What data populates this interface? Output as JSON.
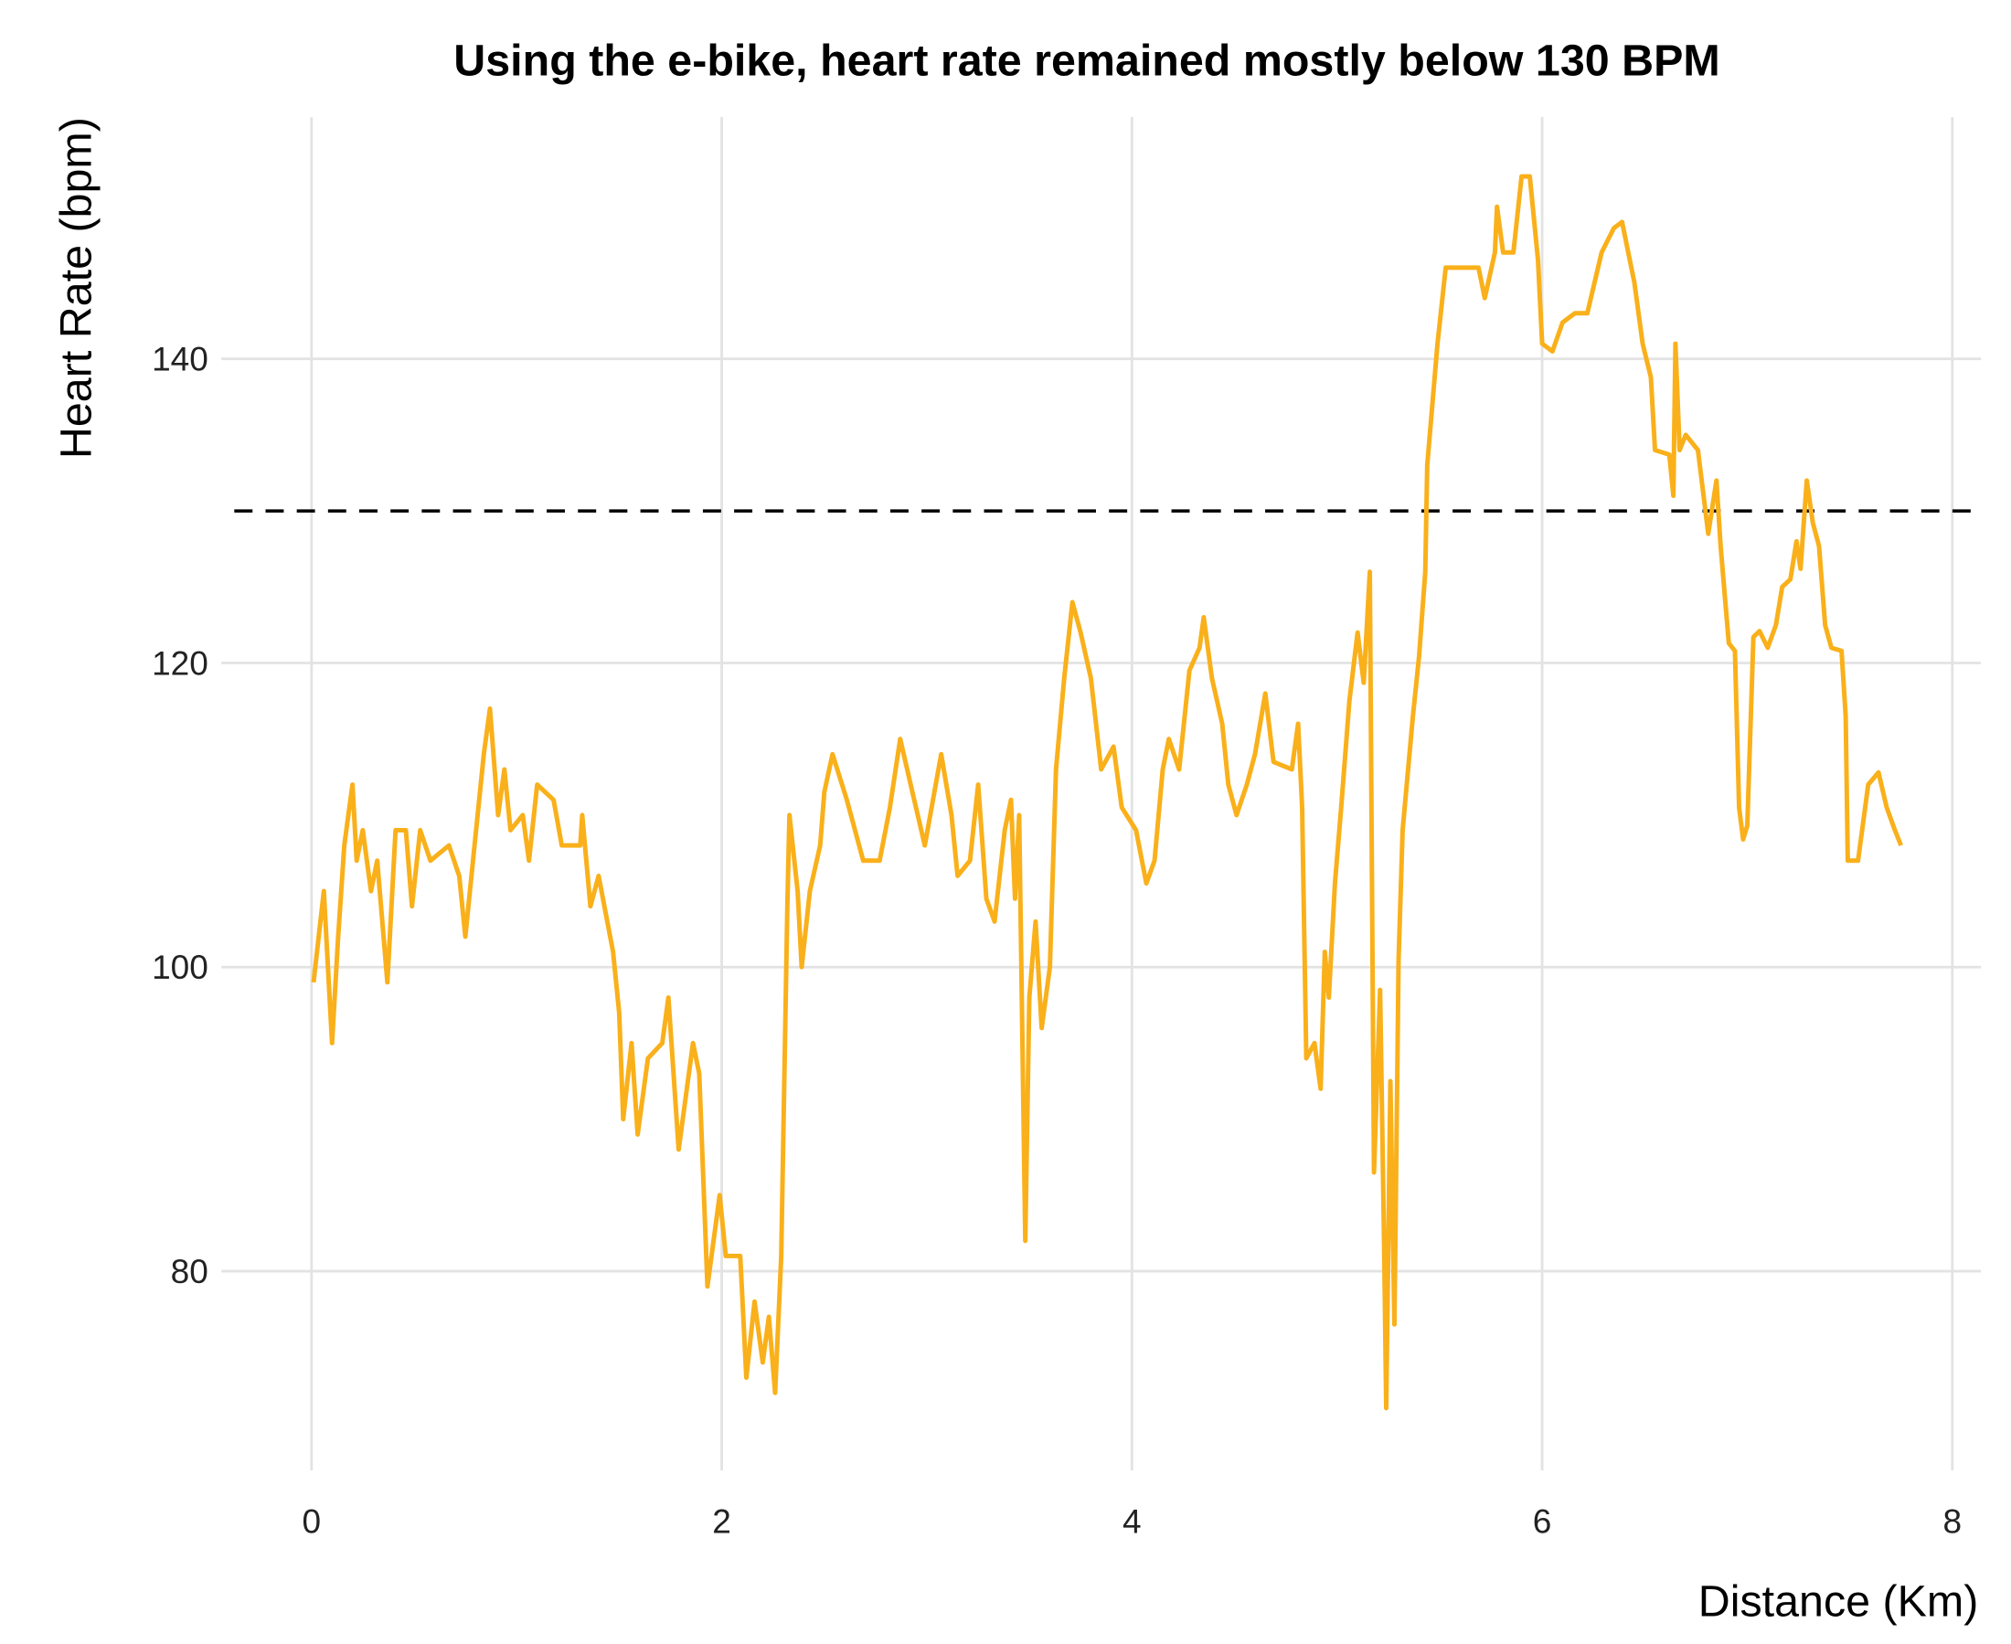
{
  "chart_data": {
    "type": "line",
    "title": "Using the e-bike, heart rate remained mostly below 130 BPM",
    "x_label": "Distance (Km)",
    "y_label": "Heart Rate (bpm)",
    "color": "#f9b01a",
    "reference_line": 130,
    "reference_color": "#000000",
    "grid": true,
    "xlim": [
      -0.44,
      8.14
    ],
    "ylim": [
      66.9,
      155.9
    ],
    "xticks": [
      0,
      2,
      4,
      6,
      8
    ],
    "yticks": [
      80,
      100,
      120,
      140
    ],
    "x": [
      0.01,
      0.06,
      0.1,
      0.13,
      0.16,
      0.2,
      0.22,
      0.25,
      0.29,
      0.32,
      0.37,
      0.41,
      0.46,
      0.49,
      0.53,
      0.58,
      0.67,
      0.72,
      0.75,
      0.78,
      0.84,
      0.87,
      0.91,
      0.94,
      0.97,
      1.03,
      1.06,
      1.1,
      1.18,
      1.22,
      1.31,
      1.32,
      1.36,
      1.4,
      1.47,
      1.5,
      1.52,
      1.56,
      1.59,
      1.64,
      1.71,
      1.74,
      1.79,
      1.86,
      1.89,
      1.93,
      1.99,
      2.02,
      2.09,
      2.12,
      2.16,
      2.2,
      2.23,
      2.26,
      2.29,
      2.32,
      2.33,
      2.37,
      2.39,
      2.43,
      2.48,
      2.5,
      2.54,
      2.61,
      2.69,
      2.77,
      2.82,
      2.87,
      2.93,
      2.99,
      3.07,
      3.12,
      3.15,
      3.21,
      3.25,
      3.29,
      3.33,
      3.38,
      3.41,
      3.43,
      3.45,
      3.48,
      3.5,
      3.53,
      3.56,
      3.6,
      3.63,
      3.67,
      3.71,
      3.75,
      3.8,
      3.85,
      3.91,
      3.95,
      4.02,
      4.07,
      4.11,
      4.15,
      4.18,
      4.23,
      4.28,
      4.33,
      4.35,
      4.39,
      4.44,
      4.47,
      4.51,
      4.56,
      4.6,
      4.65,
      4.69,
      4.78,
      4.81,
      4.83,
      4.85,
      4.89,
      4.92,
      4.94,
      4.96,
      4.99,
      5.02,
      5.06,
      5.1,
      5.13,
      5.16,
      5.18,
      5.21,
      5.23,
      5.24,
      5.26,
      5.28,
      5.3,
      5.32,
      5.37,
      5.4,
      5.43,
      5.44,
      5.49,
      5.53,
      5.62,
      5.69,
      5.72,
      5.77,
      5.78,
      5.81,
      5.86,
      5.9,
      5.94,
      5.98,
      6.0,
      6.05,
      6.1,
      6.16,
      6.22,
      6.29,
      6.35,
      6.39,
      6.45,
      6.49,
      6.53,
      6.55,
      6.62,
      6.64,
      6.65,
      6.67,
      6.7,
      6.76,
      6.81,
      6.85,
      6.87,
      6.91,
      6.94,
      6.96,
      6.98,
      7.0,
      7.03,
      7.06,
      7.1,
      7.14,
      7.17,
      7.21,
      7.24,
      7.26,
      7.29,
      7.32,
      7.35,
      7.38,
      7.41,
      7.46,
      7.48,
      7.49,
      7.54,
      7.59,
      7.64,
      7.68,
      7.72,
      7.75
    ],
    "values": [
      99,
      105,
      95,
      102,
      108,
      112,
      107,
      109,
      105,
      107,
      99,
      109,
      109,
      104,
      109,
      107,
      108,
      106,
      102,
      106,
      114,
      117,
      110,
      113,
      109,
      110,
      107,
      112,
      111,
      108,
      108,
      110,
      104,
      106,
      101,
      97,
      90,
      95,
      89,
      94,
      95,
      98,
      88,
      95,
      93,
      79,
      85,
      81,
      81,
      73,
      78,
      74,
      77,
      72,
      81,
      104,
      110,
      105,
      100,
      105,
      108,
      111.5,
      114,
      111,
      107,
      107,
      110.5,
      115,
      111.5,
      108,
      114,
      110,
      106,
      107,
      112,
      104.5,
      103,
      109,
      111,
      104.5,
      110,
      82,
      98,
      103,
      96,
      100,
      113,
      119,
      124,
      122,
      119,
      113,
      114.5,
      110.5,
      109,
      105.5,
      107,
      113,
      115,
      113,
      119.5,
      121,
      123,
      119,
      116,
      112,
      110,
      112,
      114,
      118,
      113.5,
      113,
      116,
      110.5,
      94,
      95,
      92,
      101,
      98,
      105.5,
      110.5,
      117.5,
      122,
      118.7,
      126,
      86.5,
      98.5,
      81,
      71,
      92.5,
      76.5,
      100.5,
      109,
      116.5,
      120.4,
      126,
      133,
      141,
      146,
      146,
      146,
      144,
      147,
      150,
      147,
      147,
      152,
      152,
      146.5,
      141,
      140.5,
      142.4,
      143,
      143,
      147,
      148.6,
      149,
      145,
      141,
      138.8,
      134,
      133.7,
      131,
      141,
      134,
      135,
      134,
      128.5,
      132,
      127.7,
      121.3,
      120.8,
      110.5,
      108.4,
      109.3,
      121.7,
      122.1,
      121,
      122.5,
      125,
      125.5,
      128,
      126.2,
      132,
      129.2,
      127.7,
      122.5,
      121,
      120.8,
      116.5,
      107,
      107,
      112,
      112.8,
      110.5,
      109,
      108
    ]
  }
}
